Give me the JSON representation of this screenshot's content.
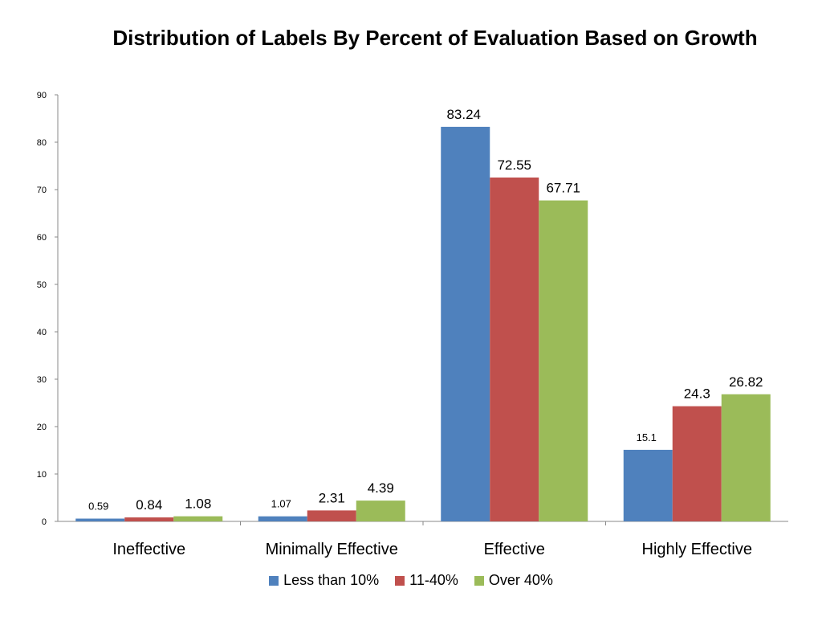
{
  "chart_data": {
    "type": "bar",
    "title": "Distribution of Labels By Percent of Evaluation Based on Growth",
    "xlabel": "",
    "ylabel": "",
    "ylim": [
      0,
      90
    ],
    "yticks": [
      "0",
      "10",
      "20",
      "30",
      "40",
      "50",
      "60",
      "70",
      "80",
      "90"
    ],
    "categories": [
      "Ineffective",
      "Minimally Effective",
      "Effective",
      "Highly Effective"
    ],
    "series": [
      {
        "name": "Less than 10%",
        "color": "#4F81BD",
        "values": [
          0.59,
          1.07,
          83.24,
          15.1
        ],
        "labels": [
          "0.59",
          "1.07",
          "83.24",
          "15.1"
        ]
      },
      {
        "name": "11-40%",
        "color": "#C0504D",
        "values": [
          0.84,
          2.31,
          72.55,
          24.3
        ],
        "labels": [
          "0.84",
          "2.31",
          "72.55",
          "24.3"
        ]
      },
      {
        "name": "Over 40%",
        "color": "#9BBB59",
        "values": [
          1.08,
          4.39,
          67.71,
          26.82
        ],
        "labels": [
          "1.08",
          "4.39",
          "67.71",
          "26.82"
        ]
      }
    ],
    "grid": false,
    "legend_position": "bottom"
  }
}
